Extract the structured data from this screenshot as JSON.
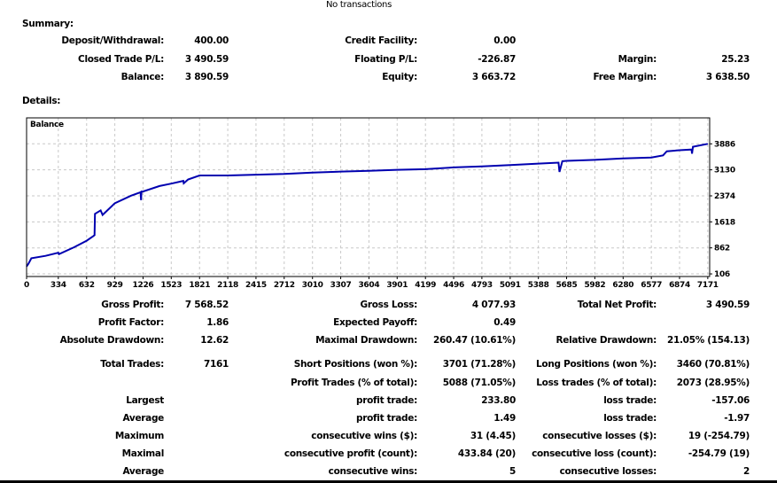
{
  "top_note": "No transactions",
  "summary": {
    "heading": "Summary:",
    "rows": [
      [
        "Deposit/Withdrawal:",
        "400.00",
        "Credit Facility:",
        "0.00",
        "",
        ""
      ],
      [
        "Closed Trade P/L:",
        "3 490.59",
        "Floating P/L:",
        "-226.87",
        "Margin:",
        "25.23"
      ],
      [
        "Balance:",
        "3 890.59",
        "Equity:",
        "3 663.72",
        "Free Margin:",
        "3 638.50"
      ]
    ]
  },
  "details": {
    "heading": "Details:",
    "rows": [
      [
        "Gross Profit:",
        "7 568.52",
        "Gross Loss:",
        "4 077.93",
        "Total Net Profit:",
        "3 490.59"
      ],
      [
        "Profit Factor:",
        "1.86",
        "Expected Payoff:",
        "0.49",
        "",
        ""
      ],
      [
        "Absolute Drawdown:",
        "12.62",
        "Maximal Drawdown:",
        "260.47 (10.61%)",
        "Relative Drawdown:",
        "21.05% (154.13)"
      ],
      [
        "Total Trades:",
        "7161",
        "Short Positions (won %):",
        "3701 (71.28%)",
        "Long Positions (won %):",
        "3460 (70.81%)"
      ],
      [
        "",
        "",
        "Profit Trades (% of total):",
        "5088 (71.05%)",
        "Loss trades (% of total):",
        "2073 (28.95%)"
      ],
      [
        "Largest",
        "",
        "profit trade:",
        "233.80",
        "loss trade:",
        "-157.06"
      ],
      [
        "Average",
        "",
        "profit trade:",
        "1.49",
        "loss trade:",
        "-1.97"
      ],
      [
        "Maximum",
        "",
        "consecutive wins ($):",
        "31 (4.45)",
        "consecutive losses ($):",
        "19 (-254.79)"
      ],
      [
        "Maximal",
        "",
        "consecutive profit (count):",
        "433.84 (20)",
        "consecutive loss (count):",
        "-254.79 (19)"
      ],
      [
        "Average",
        "",
        "consecutive wins:",
        "5",
        "consecutive losses:",
        "2"
      ]
    ]
  },
  "chart_data": {
    "type": "line",
    "title": "Balance",
    "series": [
      {
        "name": "Balance",
        "color": "#0000b0",
        "x": [
          0,
          20,
          50,
          200,
          334,
          340,
          500,
          632,
          700,
          715,
          720,
          780,
          800,
          929,
          1100,
          1200,
          1205,
          1210,
          1226,
          1400,
          1523,
          1650,
          1655,
          1700,
          1821,
          2118,
          2415,
          2712,
          3010,
          3307,
          3604,
          3901,
          4199,
          4496,
          4793,
          5091,
          5388,
          5600,
          5610,
          5640,
          5685,
          5982,
          6280,
          6577,
          6700,
          6740,
          6874,
          7000,
          7005,
          7015,
          7171
        ],
        "y": [
          320,
          400,
          560,
          630,
          720,
          680,
          880,
          1070,
          1200,
          1230,
          1850,
          1950,
          1820,
          2160,
          2380,
          2480,
          2250,
          2500,
          2500,
          2660,
          2730,
          2810,
          2740,
          2850,
          2965,
          2965,
          2990,
          3010,
          3050,
          3080,
          3100,
          3130,
          3150,
          3200,
          3230,
          3270,
          3310,
          3340,
          3070,
          3380,
          3390,
          3420,
          3460,
          3490,
          3550,
          3670,
          3700,
          3720,
          3600,
          3800,
          3886
        ]
      }
    ],
    "x_ticks": [
      "0",
      "334",
      "632",
      "929",
      "1226",
      "1523",
      "1821",
      "2118",
      "2415",
      "2712",
      "3010",
      "3307",
      "3604",
      "3901",
      "4199",
      "4496",
      "4793",
      "5091",
      "5388",
      "5685",
      "5982",
      "6280",
      "6577",
      "6874",
      "7171"
    ],
    "y_ticks": [
      "106",
      "862",
      "1618",
      "2374",
      "3130",
      "3886"
    ],
    "xlim": [
      0,
      7191
    ],
    "ylim": [
      30,
      4640
    ],
    "grid": true,
    "grid_style": "dashed"
  }
}
